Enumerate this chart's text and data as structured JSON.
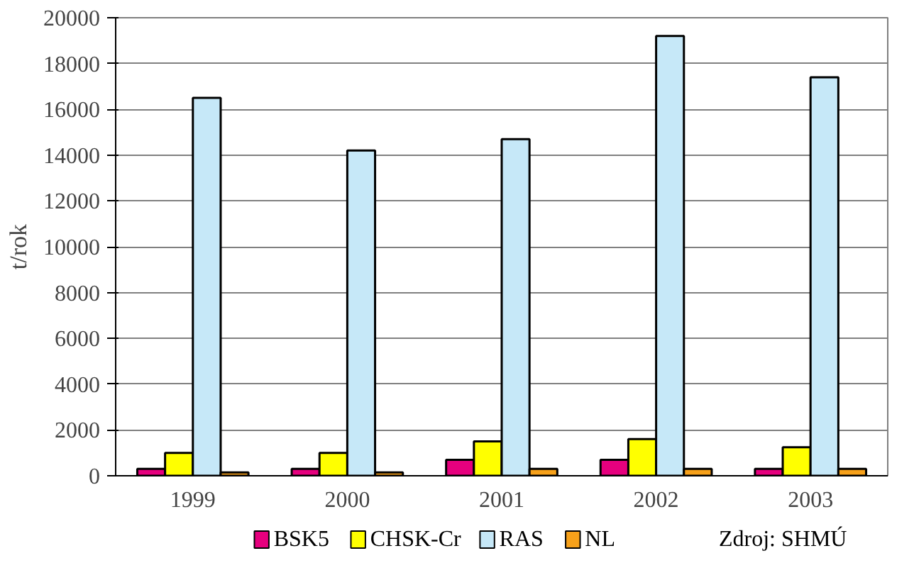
{
  "chart_data": {
    "type": "bar",
    "ylabel": "t/rok",
    "categories": [
      "1999",
      "2000",
      "2001",
      "2002",
      "2003"
    ],
    "series": [
      {
        "name": "BSK5",
        "color": "#e6007e",
        "values": [
          300,
          300,
          700,
          700,
          300
        ]
      },
      {
        "name": "CHSK-Cr",
        "color": "#ffff00",
        "values": [
          1000,
          1000,
          1500,
          1600,
          1250
        ]
      },
      {
        "name": "RAS",
        "color": "#c6e8f8",
        "values": [
          16500,
          14200,
          14700,
          19200,
          17400
        ]
      },
      {
        "name": "NL",
        "color": "#f7a11a",
        "values": [
          150,
          150,
          300,
          300,
          300
        ]
      }
    ],
    "ylim": [
      0,
      20000
    ],
    "yticks": [
      0,
      2000,
      4000,
      6000,
      8000,
      10000,
      12000,
      14000,
      16000,
      18000,
      20000
    ],
    "grid": "y",
    "legend": "bottom",
    "annotations": [
      "Zdroj: SHMÚ"
    ]
  }
}
